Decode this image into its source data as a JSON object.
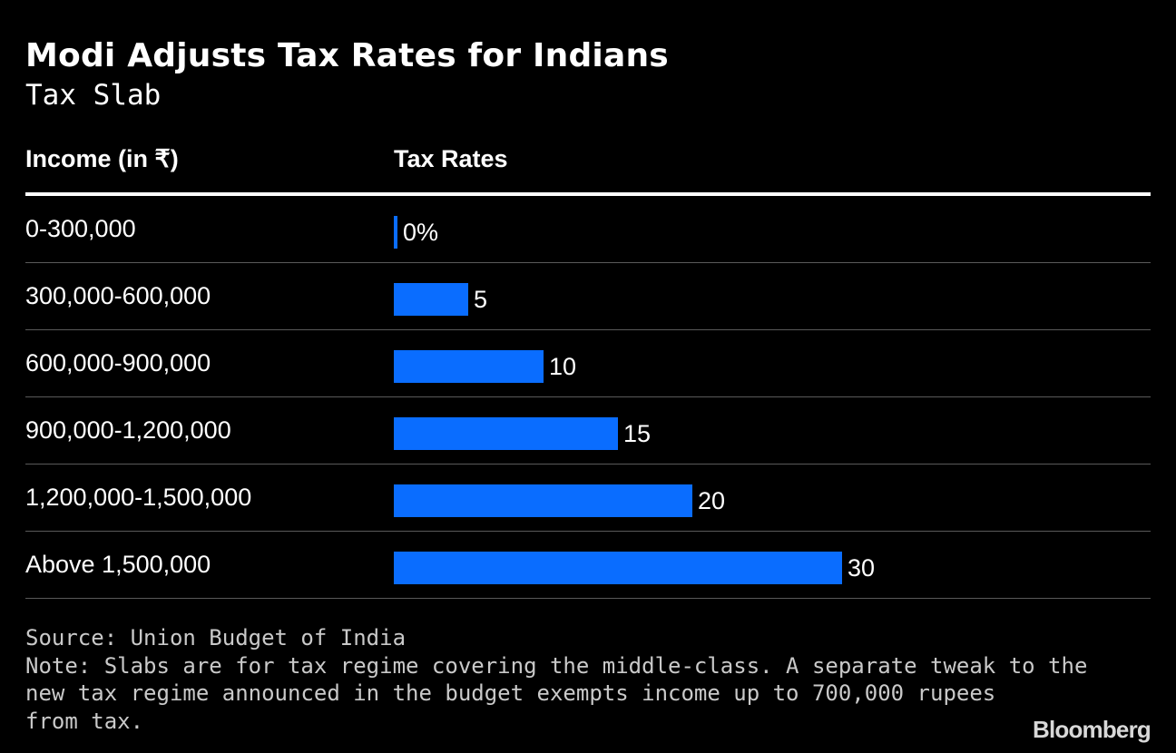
{
  "header": {
    "title": "Modi Adjusts Tax Rates for Indians",
    "subtitle": "Tax Slab"
  },
  "table": {
    "col_income": "Income (in ₹)",
    "col_rates": "Tax Rates"
  },
  "chart_data": {
    "type": "bar",
    "orientation": "horizontal",
    "title": "Modi Adjusts Tax Rates for Indians",
    "subtitle": "Tax Slab",
    "categories": [
      "0-300,000",
      "300,000-600,000",
      "600,000-900,000",
      "900,000-1,200,000",
      "1,200,000-1,500,000",
      "Above 1,500,000"
    ],
    "values": [
      0,
      5,
      10,
      15,
      20,
      30
    ],
    "value_labels": [
      "0%",
      "5",
      "10",
      "15",
      "20",
      "30"
    ],
    "xlim": [
      0,
      30
    ],
    "grid": false,
    "legend": "none",
    "colors": {
      "bar": "#0a6dff",
      "background": "#000000",
      "text": "#ffffff"
    }
  },
  "footer": {
    "source": "Source: Union Budget of India",
    "note_lines": [
      "Note: Slabs are for tax regime covering the middle-class. A separate tweak to the",
      "new tax regime announced in the budget exempts income up to 700,000 rupees",
      "from tax."
    ],
    "logo": "Bloomberg"
  }
}
